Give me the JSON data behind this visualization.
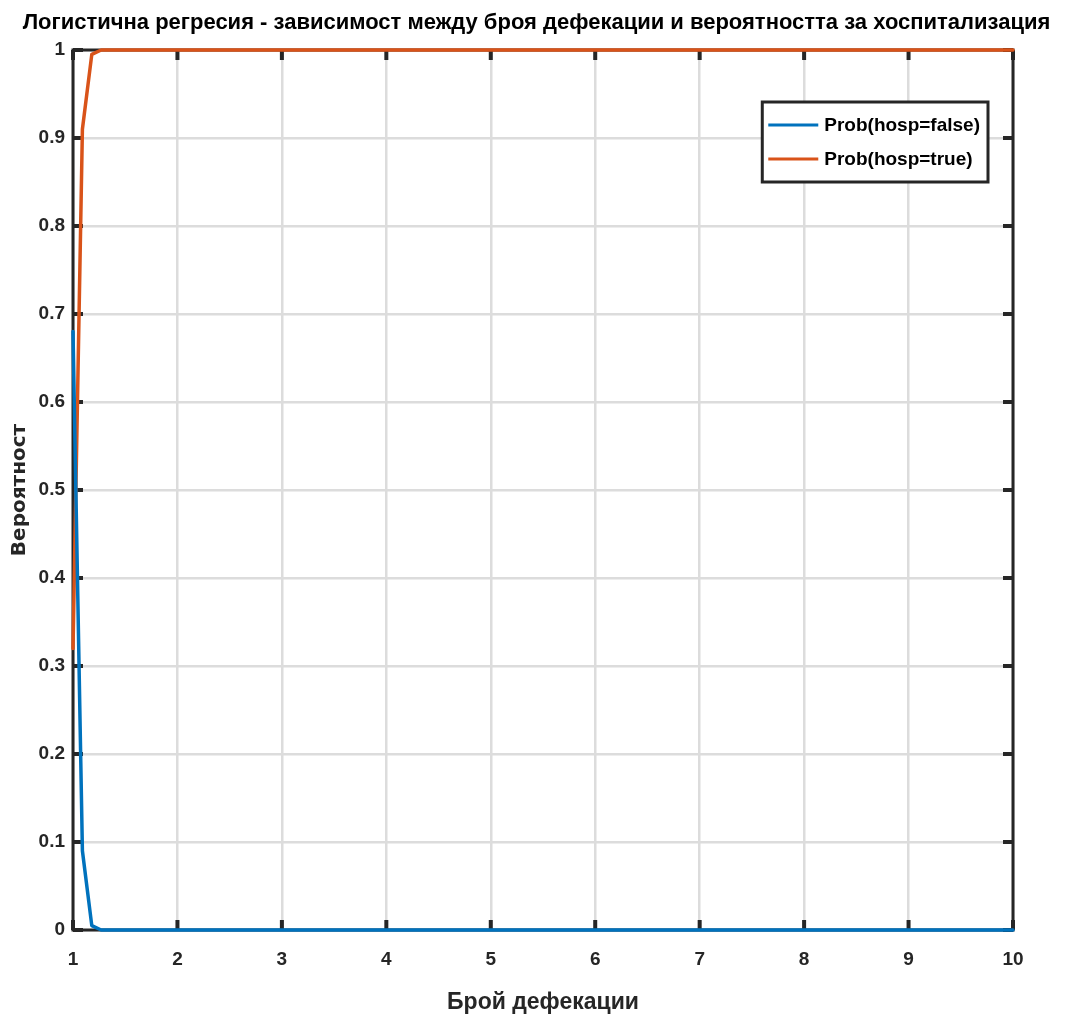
{
  "chart_data": {
    "type": "line",
    "title": "Логистична регресия - зависимост между броя дефекации и вероятността за хоспитализация",
    "xlabel": "Брой дефекации",
    "ylabel": "Вероятност",
    "series": [
      {
        "name": "Prob(hosp=false)",
        "color": "#0072bd",
        "x": [
          1,
          1.09,
          1.18,
          1.27,
          10
        ],
        "values": [
          0.68,
          0.09,
          0.005,
          0,
          0
        ]
      },
      {
        "name": "Prob(hosp=true)",
        "color": "#d95319",
        "x": [
          1,
          1.09,
          1.18,
          1.27,
          10
        ],
        "values": [
          0.32,
          0.91,
          0.995,
          1,
          1
        ]
      }
    ],
    "xlim": [
      1,
      10
    ],
    "xticks": [
      1,
      2,
      3,
      4,
      5,
      6,
      7,
      8,
      9,
      10
    ],
    "ylim": [
      0,
      1
    ],
    "yticks": [
      0,
      0.1,
      0.2,
      0.3,
      0.4,
      0.5,
      0.6,
      0.7,
      0.8,
      0.9,
      1
    ],
    "grid": true,
    "legend": "top right",
    "marker": "none",
    "line_style": "solid"
  }
}
